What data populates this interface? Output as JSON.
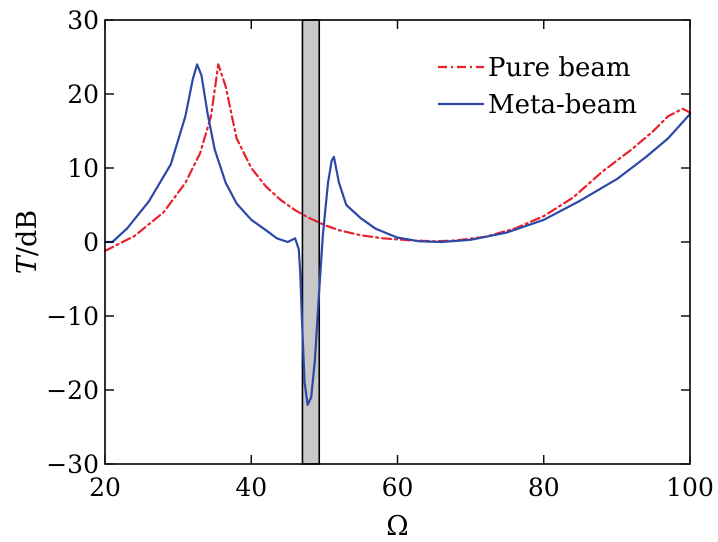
{
  "chart_data": {
    "type": "line",
    "xlabel": "Ω",
    "ylabel_italic": "T",
    "ylabel_rest": "/dB",
    "xlim": [
      20,
      100
    ],
    "ylim": [
      -30,
      30
    ],
    "xticks": [
      20,
      40,
      60,
      80,
      100
    ],
    "yticks": [
      -30,
      -20,
      -10,
      0,
      10,
      20,
      30
    ],
    "xtick_labels": [
      "20",
      "40",
      "60",
      "80",
      "100"
    ],
    "ytick_labels": [
      "−30",
      "−20",
      "−10",
      "0",
      "10",
      "20",
      "30"
    ],
    "band": {
      "x_start": 47,
      "x_end": 49.3,
      "color": "#c8c8c8"
    },
    "legend_position": "top-right",
    "series": [
      {
        "name": "Pure beam",
        "color": "#e8212c",
        "style": "dash-dot",
        "x": [
          20,
          24,
          28,
          31,
          33,
          34.5,
          35.5,
          36.5,
          38,
          40,
          42,
          44,
          46,
          48,
          50,
          52,
          55,
          58,
          62,
          65,
          68,
          72,
          76,
          80,
          84,
          88,
          92,
          95,
          97,
          99,
          100
        ],
        "y": [
          -1.2,
          0.8,
          4,
          8,
          12,
          17,
          24,
          21,
          14,
          10,
          7.5,
          5.7,
          4.3,
          3.2,
          2.3,
          1.6,
          0.9,
          0.5,
          0.2,
          0.1,
          0.2,
          0.7,
          1.8,
          3.5,
          6,
          9.5,
          12.5,
          15,
          17,
          18,
          17.5
        ]
      },
      {
        "name": "Meta-beam",
        "color": "#2b48a6",
        "style": "solid",
        "x": [
          20,
          21,
          23,
          26,
          29,
          31,
          32,
          32.6,
          33.2,
          34,
          35,
          36.5,
          38,
          40,
          42,
          43.5,
          45,
          46,
          46.5,
          46.7,
          47,
          47.3,
          47.7,
          48.2,
          48.7,
          49.2,
          49.8,
          50.5,
          51,
          51.3,
          52,
          53,
          55,
          57,
          60,
          63,
          66,
          70,
          75,
          80,
          85,
          90,
          94,
          97,
          100
        ],
        "y": [
          0,
          0,
          1.8,
          5.5,
          10.5,
          17,
          22,
          24,
          22.5,
          17.5,
          12.5,
          8,
          5.2,
          3,
          1.6,
          0.5,
          0,
          0.5,
          -1,
          -4,
          -12,
          -19,
          -22,
          -21,
          -16,
          -8,
          1,
          8,
          11,
          11.5,
          8,
          5,
          3.2,
          1.8,
          0.6,
          0.1,
          0,
          0.3,
          1.3,
          3,
          5.6,
          8.5,
          11.5,
          14,
          17.3
        ]
      }
    ]
  }
}
